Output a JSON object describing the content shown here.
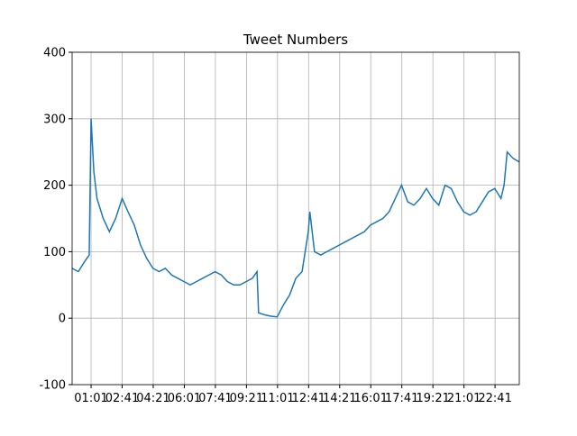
{
  "chart_data": {
    "type": "line",
    "title": "Tweet Numbers",
    "x": [
      "00:00",
      "00:20",
      "00:40",
      "00:55",
      "01:01",
      "01:10",
      "01:20",
      "01:40",
      "02:00",
      "02:20",
      "02:41",
      "03:00",
      "03:20",
      "03:40",
      "04:00",
      "04:20",
      "04:40",
      "05:00",
      "05:20",
      "05:40",
      "06:00",
      "06:20",
      "06:40",
      "07:00",
      "07:20",
      "07:40",
      "08:00",
      "08:20",
      "08:40",
      "09:00",
      "09:20",
      "09:40",
      "09:55",
      "10:00",
      "10:20",
      "10:40",
      "11:00",
      "11:20",
      "11:40",
      "12:00",
      "12:20",
      "12:40",
      "12:45",
      "13:00",
      "13:20",
      "13:40",
      "14:00",
      "14:20",
      "14:40",
      "15:00",
      "15:20",
      "15:40",
      "16:00",
      "16:20",
      "16:40",
      "17:00",
      "17:20",
      "17:40",
      "18:00",
      "18:20",
      "18:40",
      "19:00",
      "19:20",
      "19:40",
      "20:00",
      "20:20",
      "20:40",
      "21:00",
      "21:20",
      "21:40",
      "22:00",
      "22:20",
      "22:40",
      "23:00",
      "23:10",
      "23:20",
      "23:40",
      "23:59"
    ],
    "series": [
      {
        "color": "#1f77b4",
        "values": [
          75,
          70,
          85,
          95,
          300,
          220,
          180,
          150,
          130,
          150,
          180,
          160,
          140,
          110,
          90,
          75,
          70,
          75,
          65,
          60,
          55,
          50,
          55,
          60,
          65,
          70,
          65,
          55,
          50,
          50,
          55,
          60,
          70,
          8,
          5,
          3,
          2,
          20,
          35,
          60,
          70,
          130,
          160,
          100,
          95,
          100,
          105,
          110,
          115,
          120,
          125,
          130,
          140,
          145,
          150,
          160,
          180,
          200,
          175,
          170,
          180,
          195,
          180,
          170,
          200,
          195,
          175,
          160,
          155,
          160,
          175,
          190,
          195,
          180,
          200,
          250,
          240,
          235
        ]
      }
    ],
    "xlim": [
      "00:00",
      "23:59"
    ],
    "xticks": [
      "01:01",
      "02:41",
      "04:21",
      "06:01",
      "07:41",
      "09:21",
      "11:01",
      "12:41",
      "14:21",
      "16:01",
      "17:41",
      "19:21",
      "21:01",
      "22:41"
    ],
    "ylim": [
      -100,
      400
    ],
    "yticks": [
      -100,
      0,
      100,
      200,
      300,
      400
    ],
    "grid": true
  }
}
